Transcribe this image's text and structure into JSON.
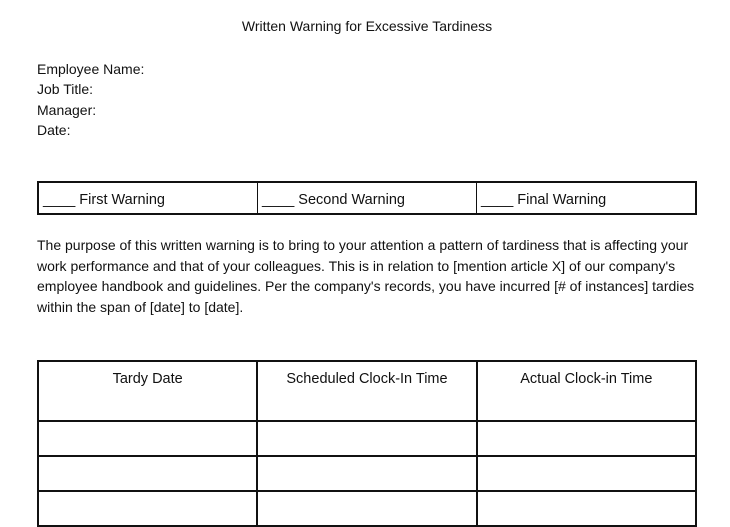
{
  "title": "Written Warning for Excessive Tardiness",
  "fields": [
    "Employee Name:",
    "Job Title:",
    "Manager:",
    "Date:"
  ],
  "warnings": [
    "____ First Warning",
    "____ Second Warning",
    "____ Final Warning"
  ],
  "paragraph": "The purpose of this written warning is to bring to your attention a pattern of tardiness that is affecting your work performance and that of your colleagues. This is in relation to [mention article X] of our company's employee handbook and guidelines. Per the company's records, you have incurred [# of instances] tardies within the span of [date] to [date].",
  "table": {
    "headers": [
      "Tardy Date",
      "Scheduled Clock-In Time",
      "Actual Clock-in Time"
    ],
    "rows": [
      [
        "",
        "",
        ""
      ],
      [
        "",
        "",
        ""
      ],
      [
        "",
        "",
        ""
      ]
    ]
  }
}
